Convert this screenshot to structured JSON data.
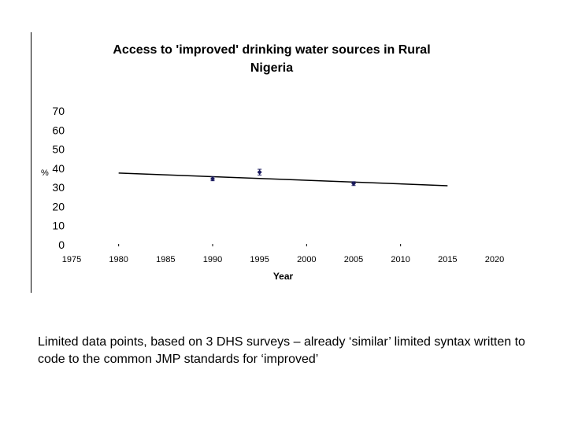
{
  "slide": {
    "caption": "Limited data points, based on 3 DHS surveys – already ‘similar’ limited syntax written to code to the common JMP standards for ‘improved’"
  },
  "chart_data": {
    "type": "scatter",
    "title": "Access to 'improved' drinking water sources in Rural\nNigeria",
    "xlabel": "Year",
    "ylabel": "%",
    "xlim": [
      1975,
      2020
    ],
    "ylim": [
      0,
      70
    ],
    "x_ticks": [
      "1975",
      "1980",
      "1985",
      "1990",
      "1995",
      "2000",
      "2005",
      "2010",
      "2015",
      "2020"
    ],
    "y_ticks": [
      "0",
      "10",
      "20",
      "30",
      "40",
      "50",
      "60",
      "70"
    ],
    "grid": false,
    "legend": "none",
    "series": [
      {
        "points": [
          {
            "x": 1990,
            "y": 34.5,
            "err_low": 33.5,
            "err_high": 35.5
          },
          {
            "x": 1995,
            "y": 38,
            "err_low": 36.5,
            "err_high": 39.5
          },
          {
            "x": 2005,
            "y": 32,
            "err_low": 31,
            "err_high": 33
          }
        ],
        "color": "#1a1a5e"
      }
    ],
    "trendline": {
      "x": [
        1980,
        2015
      ],
      "y": [
        37.5,
        30.9
      ],
      "color": "#000000"
    }
  }
}
